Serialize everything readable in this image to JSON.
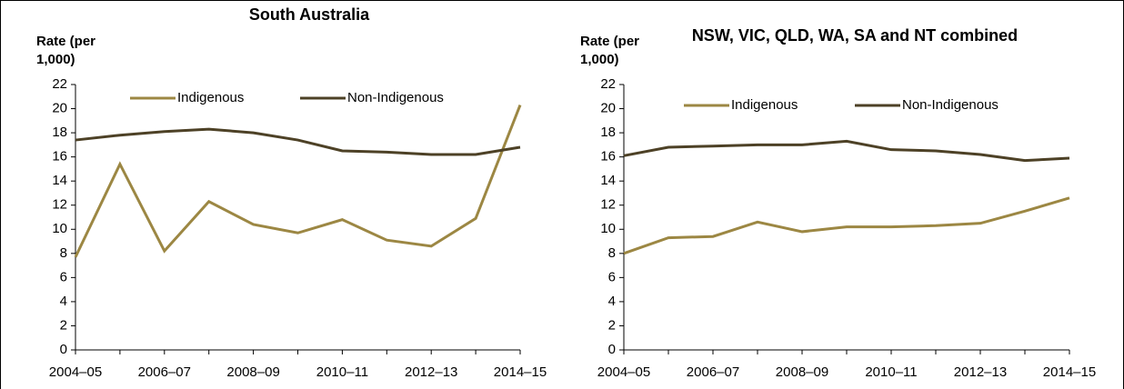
{
  "chart_data": [
    {
      "type": "line",
      "title": "South Australia",
      "y_label": "Rate (per 1,000)",
      "categories": [
        "2004–05",
        null,
        "2006–07",
        null,
        "2008–09",
        null,
        "2010–11",
        null,
        "2012–13",
        null,
        "2014–15"
      ],
      "series": [
        {
          "name": "Indigenous",
          "color": "#9c8743",
          "values": [
            7.7,
            15.4,
            8.2,
            12.3,
            10.4,
            9.7,
            10.8,
            9.1,
            8.6,
            10.9,
            20.3
          ]
        },
        {
          "name": "Non-Indigenous",
          "color": "#4d4126",
          "values": [
            17.4,
            17.8,
            18.1,
            18.3,
            18.0,
            17.4,
            16.5,
            16.4,
            16.2,
            16.2,
            16.8
          ]
        }
      ],
      "ylim": [
        0,
        22
      ],
      "yticks": [
        0,
        2,
        4,
        6,
        8,
        10,
        12,
        14,
        16,
        18,
        20,
        22
      ]
    },
    {
      "type": "line",
      "title": "NSW, VIC, QLD, WA, SA and NT combined",
      "y_label": "Rate (per 1,000)",
      "categories": [
        "2004–05",
        null,
        "2006–07",
        null,
        "2008–09",
        null,
        "2010–11",
        null,
        "2012–13",
        null,
        "2014–15"
      ],
      "series": [
        {
          "name": "Indigenous",
          "color": "#9c8743",
          "values": [
            8.0,
            9.3,
            9.4,
            10.6,
            9.8,
            10.2,
            10.2,
            10.3,
            10.5,
            11.5,
            12.6
          ]
        },
        {
          "name": "Non-Indigenous",
          "color": "#4d4126",
          "values": [
            16.1,
            16.8,
            16.9,
            17.0,
            17.0,
            17.3,
            16.6,
            16.5,
            16.2,
            15.7,
            15.9
          ]
        }
      ],
      "ylim": [
        0,
        22
      ],
      "yticks": [
        0,
        2,
        4,
        6,
        8,
        10,
        12,
        14,
        16,
        18,
        20,
        22
      ]
    }
  ]
}
